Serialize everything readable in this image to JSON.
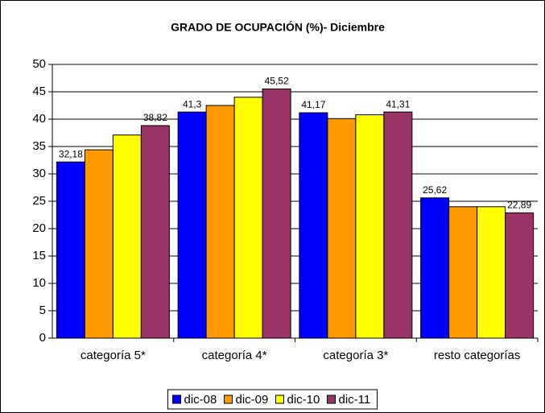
{
  "chart_data": {
    "type": "bar",
    "title": "GRADO DE OCUPACIÓN (%)- Diciembre",
    "categories": [
      "categoría 5*",
      "categoría 4*",
      "categoría 3*",
      "resto categorías"
    ],
    "series": [
      {
        "name": "dic-08",
        "color": "#0000ff",
        "values": [
          32.18,
          41.3,
          41.17,
          25.62
        ],
        "value_labels": [
          "32,18",
          "41,3",
          "41,17",
          "25,62"
        ]
      },
      {
        "name": "dic-09",
        "color": "#ff9900",
        "values": [
          34.4,
          42.5,
          40.1,
          24
        ],
        "value_labels": [
          null,
          null,
          null,
          null
        ]
      },
      {
        "name": "dic-10",
        "color": "#ffff00",
        "values": [
          37.1,
          44,
          40.8,
          24
        ],
        "value_labels": [
          null,
          null,
          null,
          null
        ]
      },
      {
        "name": "dic-11",
        "color": "#993366",
        "values": [
          38.82,
          45.52,
          41.31,
          22.89
        ],
        "value_labels": [
          "38,82",
          "45,52",
          "41,31",
          "22,89"
        ]
      }
    ],
    "ylim": [
      0,
      50
    ],
    "yticks": [
      0,
      5,
      10,
      15,
      20,
      25,
      30,
      35,
      40,
      45,
      50
    ],
    "grid": true,
    "legend": "bottom"
  }
}
